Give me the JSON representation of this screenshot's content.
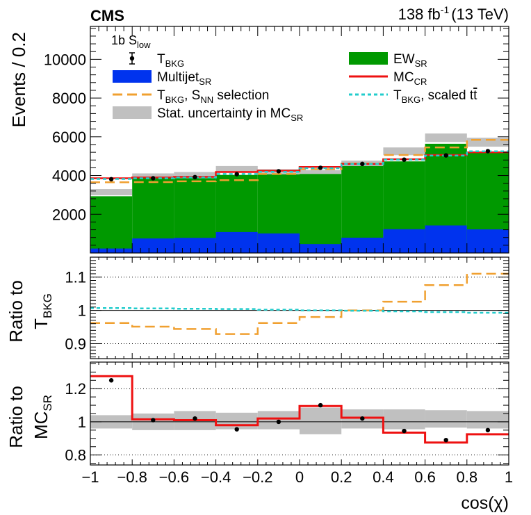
{
  "header": {
    "experiment": "CMS",
    "lumi": "138 fb",
    "lumi_exp": "-1",
    "energy": "(13 TeV)"
  },
  "category": {
    "base": "1b S",
    "sub": "low"
  },
  "legend": [
    {
      "key": "tbkg",
      "base": "T",
      "sub": "BKG",
      "tail": "",
      "style": "errpoint",
      "color": "#000000"
    },
    {
      "key": "ew",
      "base": "EW",
      "sub": "SR",
      "tail": "",
      "style": "fill",
      "color": "#009900"
    },
    {
      "key": "multijet",
      "base": "Multijet",
      "sub": "SR",
      "tail": "",
      "style": "fill",
      "color": "#0033ee"
    },
    {
      "key": "mccr",
      "base": "MC",
      "sub": "CR",
      "tail": "",
      "style": "line",
      "color": "#ee1111"
    },
    {
      "key": "snn",
      "base": "T",
      "sub": "BKG",
      "tail": ", S",
      "sub2": "NN",
      "tail2": " selection",
      "style": "dash",
      "color": "#f0a030"
    },
    {
      "key": "scaledtt",
      "base": "T",
      "sub": "BKG",
      "tail": ", scaled t",
      "bar": "t",
      "style": "dot",
      "color": "#22cccc"
    },
    {
      "key": "stat",
      "base": "Stat. uncertainty in MC",
      "sub": "SR",
      "tail": "",
      "style": "band",
      "color": "#c0c0c0"
    }
  ],
  "chart_data": [
    {
      "type": "bar",
      "title": "",
      "xlabel": "cos(χ)",
      "ylabel": "Events / 0.2",
      "xlim": [
        -1,
        1
      ],
      "ylim": [
        0,
        11700
      ],
      "yticks": [
        2000,
        4000,
        6000,
        8000,
        10000
      ],
      "bin_edges": [
        -1,
        -0.8,
        -0.6,
        -0.4,
        -0.2,
        0,
        0.2,
        0.4,
        0.6,
        0.8,
        1
      ],
      "series": [
        {
          "name": "Multijet_SR",
          "values": [
            230,
            750,
            780,
            1080,
            1010,
            460,
            790,
            1230,
            1420,
            1220
          ]
        },
        {
          "name": "EW_SR",
          "values": [
            2700,
            3180,
            3080,
            2950,
            3050,
            3620,
            3700,
            3500,
            4220,
            3950
          ]
        },
        {
          "name": "Stat. uncertainty in MC_SR",
          "values": [
            3140,
            3950,
            4000,
            4340,
            4180,
            4100,
            4600,
            5250,
            5950,
            5720
          ],
          "unc": [
            160,
            160,
            180,
            150,
            150,
            180,
            170,
            200,
            220,
            230
          ]
        },
        {
          "name": "MC_CR",
          "values": [
            3860,
            3900,
            3930,
            4180,
            4250,
            4440,
            4600,
            4840,
            5060,
            5200
          ]
        },
        {
          "name": "T_BKG, S_NN selection",
          "values": [
            3650,
            3660,
            3700,
            3760,
            4080,
            4330,
            4620,
            5060,
            5450,
            5840
          ]
        },
        {
          "name": "T_BKG, scaled tt",
          "values": [
            3820,
            3860,
            3900,
            4080,
            4190,
            4380,
            4600,
            4820,
            5030,
            5250
          ]
        },
        {
          "name": "T_BKG",
          "values": [
            3810,
            3860,
            3920,
            4070,
            4220,
            4400,
            4600,
            4820,
            5040,
            5260
          ],
          "err": [
            40,
            40,
            40,
            40,
            40,
            40,
            40,
            40,
            40,
            40
          ]
        }
      ]
    },
    {
      "type": "line",
      "ylabel": "Ratio to T_BKG",
      "ylabel_line1": "Ratio to",
      "ylabel_line2_base": "T",
      "ylabel_line2_sub": "BKG",
      "xlim": [
        -1,
        1
      ],
      "ylim": [
        0.855,
        1.16
      ],
      "yticks": [
        0.9,
        1,
        1.1
      ],
      "ytick_labels": [
        "0.9",
        "1",
        "1.1"
      ],
      "gridlines": [
        0.9,
        1.1
      ],
      "series": [
        {
          "name": "T_BKG, S_NN selection",
          "values": [
            0.962,
            0.951,
            0.944,
            0.929,
            0.962,
            0.98,
            1.0,
            1.026,
            1.076,
            1.11
          ]
        },
        {
          "name": "T_BKG, scaled tt",
          "values": [
            1.007,
            1.006,
            1.005,
            1.004,
            1.002,
            1.0,
            0.999,
            0.997,
            0.995,
            0.993
          ]
        }
      ]
    },
    {
      "type": "line",
      "ylabel": "Ratio to MC_SR",
      "ylabel_line1": "Ratio to",
      "ylabel_line2_base": "MC",
      "ylabel_line2_sub": "SR",
      "xlim": [
        -1,
        1
      ],
      "ylim": [
        0.74,
        1.36
      ],
      "yticks": [
        0.8,
        1,
        1.2
      ],
      "ytick_labels": [
        "0.8",
        "1",
        "1.2"
      ],
      "xticks": [
        -1,
        -0.8,
        -0.6,
        -0.4,
        -0.2,
        0,
        0.2,
        0.4,
        0.6,
        0.8,
        1
      ],
      "xtick_labels": [
        "−1",
        "−0.8",
        "−0.6",
        "−0.4",
        "−0.2",
        "0",
        "0.2",
        "0.4",
        "0.6",
        "0.8",
        "1"
      ],
      "gridlines": [
        0.8,
        1.2
      ],
      "series": [
        {
          "name": "Stat. uncertainty in MC_SR",
          "lo": [
            0.96,
            0.95,
            0.95,
            0.955,
            0.955,
            0.925,
            0.96,
            0.955,
            0.965,
            0.96
          ],
          "hi": [
            1.04,
            1.05,
            1.065,
            1.055,
            1.065,
            1.085,
            1.075,
            1.075,
            1.07,
            1.065
          ]
        },
        {
          "name": "MC_CR",
          "values": [
            1.275,
            1.015,
            1.01,
            0.98,
            1.02,
            1.095,
            1.025,
            0.935,
            0.875,
            0.925
          ]
        },
        {
          "name": "T_BKG",
          "values": [
            1.25,
            1.01,
            1.02,
            0.955,
            1.0,
            1.1,
            1.02,
            0.945,
            0.89,
            0.95
          ],
          "err": [
            0.012,
            0.01,
            0.01,
            0.01,
            0.01,
            0.01,
            0.01,
            0.01,
            0.01,
            0.01
          ]
        }
      ]
    }
  ]
}
